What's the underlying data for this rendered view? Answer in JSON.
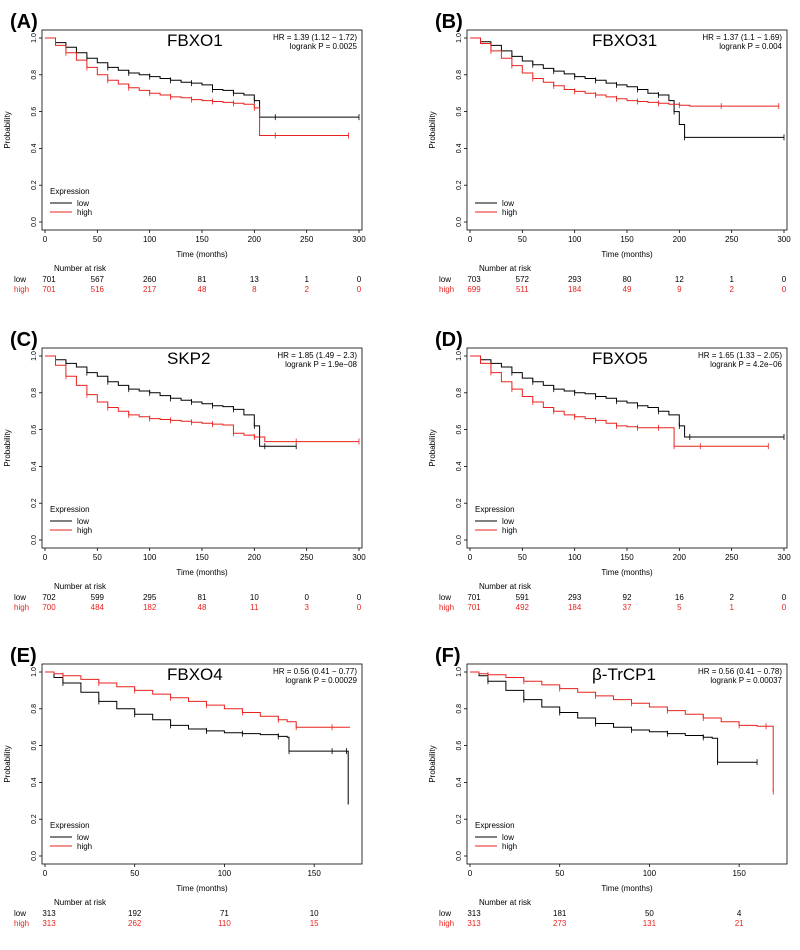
{
  "colors": {
    "low": "#000000",
    "high": "#e8231f",
    "axis": "#000000"
  },
  "chart_data": [
    {
      "type": "line",
      "panel_label": "(A)",
      "gene": "FBXO1",
      "hr_text": "HR = 1.39 (1.12 − 1.72)",
      "p_text": "logrank P = 0.0025",
      "xlabel": "Time (months)",
      "ylabel": "Probability",
      "xlim": [
        0,
        300
      ],
      "xticks": [
        "0",
        "50",
        "100",
        "150",
        "200",
        "250",
        "300"
      ],
      "ylim": [
        0,
        1
      ],
      "yticks": [
        "0.0",
        "0.2",
        "0.4",
        "0.6",
        "0.8",
        "1.0"
      ],
      "legend_title": "Expression",
      "legend_low": "low",
      "legend_high": "high",
      "risk_title": "Number at risk",
      "risk_low": [
        "701",
        "567",
        "260",
        "81",
        "13",
        "1",
        "0"
      ],
      "risk_high": [
        "701",
        "516",
        "217",
        "48",
        "8",
        "2",
        "0"
      ],
      "series": [
        {
          "name": "low",
          "x": [
            0,
            10,
            20,
            30,
            40,
            50,
            60,
            70,
            80,
            90,
            100,
            110,
            120,
            130,
            140,
            150,
            160,
            170,
            180,
            190,
            200,
            205,
            220,
            250,
            300
          ],
          "y": [
            1,
            0.975,
            0.95,
            0.92,
            0.89,
            0.865,
            0.84,
            0.825,
            0.81,
            0.8,
            0.79,
            0.78,
            0.77,
            0.76,
            0.755,
            0.745,
            0.72,
            0.715,
            0.7,
            0.69,
            0.66,
            0.57,
            0.57,
            0.57,
            0.57
          ]
        },
        {
          "name": "high",
          "x": [
            0,
            10,
            20,
            30,
            40,
            50,
            60,
            70,
            80,
            90,
            100,
            110,
            120,
            130,
            140,
            150,
            160,
            170,
            180,
            190,
            200,
            205,
            220,
            250,
            290
          ],
          "y": [
            1,
            0.96,
            0.92,
            0.88,
            0.84,
            0.8,
            0.77,
            0.75,
            0.73,
            0.715,
            0.7,
            0.69,
            0.68,
            0.675,
            0.665,
            0.66,
            0.655,
            0.65,
            0.645,
            0.64,
            0.62,
            0.47,
            0.47,
            0.47,
            0.47
          ]
        }
      ]
    },
    {
      "type": "line",
      "panel_label": "(B)",
      "gene": "FBXO31",
      "hr_text": "HR = 1.37 (1.1 − 1.69)",
      "p_text": "logrank P = 0.004",
      "xlabel": "Time (months)",
      "ylabel": "Probability",
      "xlim": [
        0,
        300
      ],
      "xticks": [
        "0",
        "50",
        "100",
        "150",
        "200",
        "250",
        "300"
      ],
      "ylim": [
        0,
        1
      ],
      "yticks": [
        "0.0",
        "0.2",
        "0.4",
        "0.6",
        "0.8",
        "1.0"
      ],
      "legend_title": "",
      "legend_low": "low",
      "legend_high": "high",
      "risk_title": "Number at risk",
      "risk_low": [
        "703",
        "572",
        "293",
        "80",
        "12",
        "1",
        "0"
      ],
      "risk_high": [
        "699",
        "511",
        "184",
        "49",
        "9",
        "2",
        "0"
      ],
      "series": [
        {
          "name": "low",
          "x": [
            0,
            10,
            20,
            30,
            40,
            50,
            60,
            70,
            80,
            90,
            100,
            110,
            120,
            130,
            140,
            150,
            160,
            170,
            180,
            190,
            195,
            200,
            205,
            210,
            300
          ],
          "y": [
            1,
            0.98,
            0.96,
            0.93,
            0.9,
            0.875,
            0.855,
            0.835,
            0.82,
            0.805,
            0.79,
            0.78,
            0.77,
            0.755,
            0.745,
            0.735,
            0.72,
            0.7,
            0.69,
            0.66,
            0.6,
            0.53,
            0.46,
            0.46,
            0.46
          ]
        },
        {
          "name": "high",
          "x": [
            0,
            10,
            20,
            30,
            40,
            50,
            60,
            70,
            80,
            90,
            100,
            110,
            120,
            130,
            140,
            150,
            160,
            170,
            180,
            190,
            200,
            210,
            240,
            270,
            295
          ],
          "y": [
            1,
            0.97,
            0.93,
            0.89,
            0.85,
            0.81,
            0.78,
            0.76,
            0.74,
            0.72,
            0.71,
            0.7,
            0.69,
            0.68,
            0.67,
            0.66,
            0.655,
            0.65,
            0.645,
            0.64,
            0.635,
            0.63,
            0.63,
            0.63,
            0.63
          ]
        }
      ]
    },
    {
      "type": "line",
      "panel_label": "(C)",
      "gene": "SKP2",
      "hr_text": "HR = 1.85 (1.49 − 2.3)",
      "p_text": "logrank P = 1.9e−08",
      "xlabel": "Time (months)",
      "ylabel": "Probability",
      "xlim": [
        0,
        300
      ],
      "xticks": [
        "0",
        "50",
        "100",
        "150",
        "200",
        "250",
        "300"
      ],
      "ylim": [
        0,
        1
      ],
      "yticks": [
        "0.0",
        "0.2",
        "0.4",
        "0.6",
        "0.8",
        "1.0"
      ],
      "legend_title": "Expression",
      "legend_low": "low",
      "legend_high": "high",
      "risk_title": "Number at risk",
      "risk_low": [
        "702",
        "599",
        "295",
        "81",
        "10",
        "0",
        "0"
      ],
      "risk_high": [
        "700",
        "484",
        "182",
        "48",
        "11",
        "3",
        "0"
      ],
      "series": [
        {
          "name": "low",
          "x": [
            0,
            10,
            20,
            30,
            40,
            50,
            60,
            70,
            80,
            90,
            100,
            110,
            120,
            130,
            140,
            150,
            160,
            170,
            180,
            190,
            200,
            205,
            210,
            220,
            240
          ],
          "y": [
            1,
            0.98,
            0.96,
            0.94,
            0.91,
            0.89,
            0.86,
            0.84,
            0.82,
            0.81,
            0.8,
            0.785,
            0.77,
            0.76,
            0.75,
            0.74,
            0.73,
            0.725,
            0.71,
            0.68,
            0.62,
            0.51,
            0.51,
            0.51,
            0.51
          ]
        },
        {
          "name": "high",
          "x": [
            0,
            10,
            20,
            30,
            40,
            50,
            60,
            70,
            80,
            90,
            100,
            110,
            120,
            130,
            140,
            150,
            160,
            170,
            180,
            190,
            200,
            210,
            240,
            270,
            300
          ],
          "y": [
            1,
            0.95,
            0.89,
            0.84,
            0.79,
            0.75,
            0.72,
            0.7,
            0.68,
            0.67,
            0.66,
            0.655,
            0.65,
            0.645,
            0.64,
            0.635,
            0.63,
            0.625,
            0.58,
            0.57,
            0.56,
            0.535,
            0.535,
            0.535,
            0.535
          ]
        }
      ]
    },
    {
      "type": "line",
      "panel_label": "(D)",
      "gene": "FBXO5",
      "hr_text": "HR = 1.65 (1.33 − 2.05)",
      "p_text": "logrank P = 4.2e−06",
      "xlabel": "Time (months)",
      "ylabel": "Probability",
      "xlim": [
        0,
        300
      ],
      "xticks": [
        "0",
        "50",
        "100",
        "150",
        "200",
        "250",
        "300"
      ],
      "ylim": [
        0,
        1
      ],
      "yticks": [
        "0.0",
        "0.2",
        "0.4",
        "0.6",
        "0.8",
        "1.0"
      ],
      "legend_title": "Expression",
      "legend_low": "low",
      "legend_high": "high",
      "risk_title": "Number at risk",
      "risk_low": [
        "701",
        "591",
        "293",
        "92",
        "16",
        "2",
        "0"
      ],
      "risk_high": [
        "701",
        "492",
        "184",
        "37",
        "5",
        "1",
        "0"
      ],
      "series": [
        {
          "name": "low",
          "x": [
            0,
            10,
            20,
            30,
            40,
            50,
            60,
            70,
            80,
            90,
            100,
            110,
            120,
            130,
            140,
            150,
            160,
            170,
            180,
            190,
            200,
            205,
            210,
            250,
            300
          ],
          "y": [
            1,
            0.98,
            0.96,
            0.94,
            0.91,
            0.88,
            0.86,
            0.84,
            0.82,
            0.81,
            0.8,
            0.795,
            0.78,
            0.77,
            0.755,
            0.745,
            0.73,
            0.72,
            0.7,
            0.68,
            0.62,
            0.56,
            0.56,
            0.56,
            0.56
          ]
        },
        {
          "name": "high",
          "x": [
            0,
            10,
            20,
            30,
            40,
            50,
            60,
            70,
            80,
            90,
            100,
            110,
            120,
            130,
            140,
            150,
            160,
            170,
            180,
            190,
            195,
            200,
            220,
            250,
            285
          ],
          "y": [
            1,
            0.96,
            0.91,
            0.86,
            0.82,
            0.78,
            0.75,
            0.72,
            0.7,
            0.68,
            0.67,
            0.66,
            0.65,
            0.635,
            0.62,
            0.615,
            0.61,
            0.61,
            0.61,
            0.61,
            0.51,
            0.51,
            0.51,
            0.51,
            0.51
          ]
        }
      ]
    },
    {
      "type": "line",
      "panel_label": "(E)",
      "gene": "FBXO4",
      "hr_text": "HR = 0.56 (0.41 − 0.77)",
      "p_text": "logrank P = 0.00029",
      "xlabel": "Time (months)",
      "ylabel": "Probability",
      "xlim": [
        0,
        175
      ],
      "xticks": [
        "0",
        "50",
        "100",
        "150"
      ],
      "ylim": [
        0,
        1
      ],
      "yticks": [
        "0.0",
        "0.2",
        "0.4",
        "0.6",
        "0.8",
        "1.0"
      ],
      "legend_title": "Expression",
      "legend_low": "low",
      "legend_high": "high",
      "risk_title": "Number at risk",
      "risk_low": [
        "313",
        "192",
        "71",
        "10"
      ],
      "risk_high": [
        "313",
        "262",
        "110",
        "15"
      ],
      "series": [
        {
          "name": "low",
          "x": [
            0,
            5,
            10,
            20,
            30,
            40,
            50,
            60,
            70,
            80,
            90,
            100,
            110,
            120,
            130,
            135,
            136,
            150,
            160,
            165,
            168,
            169
          ],
          "y": [
            1,
            0.97,
            0.94,
            0.89,
            0.84,
            0.8,
            0.77,
            0.74,
            0.71,
            0.69,
            0.68,
            0.67,
            0.665,
            0.66,
            0.65,
            0.645,
            0.57,
            0.57,
            0.57,
            0.57,
            0.57,
            0.28
          ]
        },
        {
          "name": "high",
          "x": [
            0,
            5,
            10,
            20,
            30,
            40,
            50,
            60,
            70,
            80,
            90,
            100,
            110,
            120,
            130,
            135,
            140,
            150,
            160,
            170
          ],
          "y": [
            1,
            0.99,
            0.98,
            0.96,
            0.94,
            0.92,
            0.9,
            0.88,
            0.86,
            0.84,
            0.82,
            0.8,
            0.78,
            0.76,
            0.74,
            0.73,
            0.7,
            0.7,
            0.7,
            0.7
          ]
        }
      ]
    },
    {
      "type": "line",
      "panel_label": "(F)",
      "gene": "β-TrCP1",
      "hr_text": "HR = 0.56 (0.41 − 0.78)",
      "p_text": "logrank P = 0.00037",
      "xlabel": "Time (months)",
      "ylabel": "Probability",
      "xlim": [
        0,
        175
      ],
      "xticks": [
        "0",
        "50",
        "100",
        "150"
      ],
      "ylim": [
        0,
        1
      ],
      "yticks": [
        "0.0",
        "0.2",
        "0.4",
        "0.6",
        "0.8",
        "1.0"
      ],
      "legend_title": "Expression",
      "legend_low": "low",
      "legend_high": "high",
      "risk_title": "Number at risk",
      "risk_low": [
        "313",
        "181",
        "50",
        "4"
      ],
      "risk_high": [
        "313",
        "273",
        "131",
        "21"
      ],
      "series": [
        {
          "name": "low",
          "x": [
            0,
            5,
            10,
            20,
            30,
            40,
            50,
            60,
            70,
            80,
            90,
            100,
            110,
            120,
            130,
            135,
            138,
            150,
            160
          ],
          "y": [
            1,
            0.98,
            0.95,
            0.9,
            0.85,
            0.81,
            0.78,
            0.75,
            0.72,
            0.7,
            0.685,
            0.675,
            0.665,
            0.655,
            0.645,
            0.64,
            0.51,
            0.51,
            0.51
          ]
        },
        {
          "name": "high",
          "x": [
            0,
            5,
            10,
            20,
            30,
            40,
            50,
            60,
            70,
            80,
            90,
            100,
            110,
            120,
            130,
            140,
            150,
            160,
            165,
            168,
            169
          ],
          "y": [
            1,
            0.99,
            0.985,
            0.97,
            0.95,
            0.93,
            0.91,
            0.89,
            0.87,
            0.85,
            0.83,
            0.81,
            0.79,
            0.77,
            0.75,
            0.73,
            0.71,
            0.705,
            0.705,
            0.705,
            0.35
          ]
        }
      ]
    }
  ]
}
